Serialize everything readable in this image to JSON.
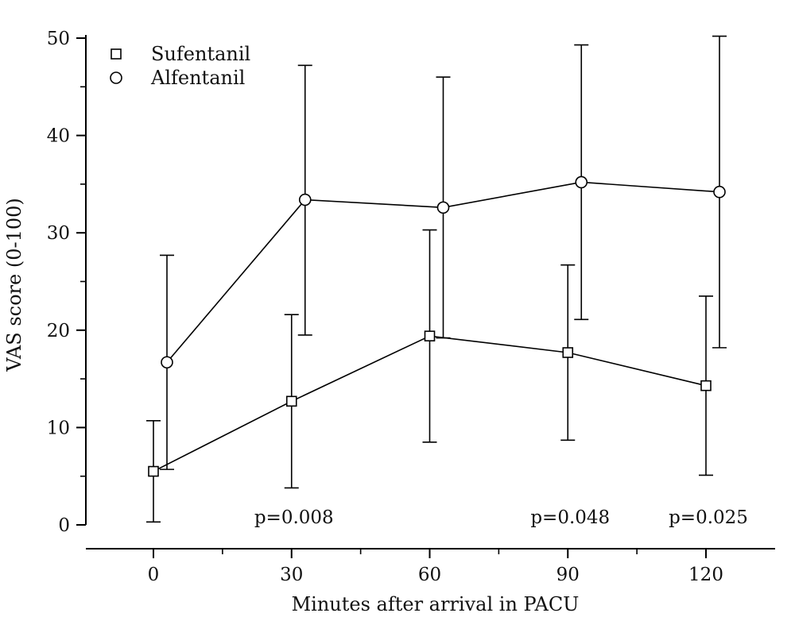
{
  "chart_data": {
    "type": "line",
    "xlabel": "Minutes after arrival in PACU",
    "ylabel": "VAS score (0-100)",
    "x": [
      0,
      30,
      60,
      90,
      120
    ],
    "x_ticks": [
      "0",
      "30",
      "60",
      "90",
      "120"
    ],
    "y_ticks": [
      "0",
      "10",
      "20",
      "30",
      "40",
      "50"
    ],
    "ylim": [
      0,
      50
    ],
    "xlim": [
      -15,
      135
    ],
    "grid": false,
    "legend_position": "top-left",
    "series": [
      {
        "name": "Sufentanil",
        "marker": "square",
        "color": "#000000",
        "values": [
          5.5,
          12.7,
          19.4,
          17.7,
          14.3
        ],
        "error_low": [
          0.3,
          3.8,
          8.5,
          8.7,
          5.1
        ],
        "error_high": [
          10.7,
          21.6,
          30.3,
          26.7,
          23.5
        ]
      },
      {
        "name": "Alfentanil",
        "marker": "circle",
        "color": "#000000",
        "values": [
          16.7,
          33.4,
          32.6,
          35.2,
          34.2
        ],
        "error_low": [
          5.7,
          19.5,
          19.2,
          21.1,
          18.2
        ],
        "error_high": [
          27.7,
          47.2,
          46.0,
          49.3,
          50.2
        ]
      }
    ],
    "annotations": [
      {
        "text": "p=0.008",
        "x": 30
      },
      {
        "text": "p=0.048",
        "x": 90
      },
      {
        "text": "p=0.025",
        "x": 120
      }
    ]
  }
}
